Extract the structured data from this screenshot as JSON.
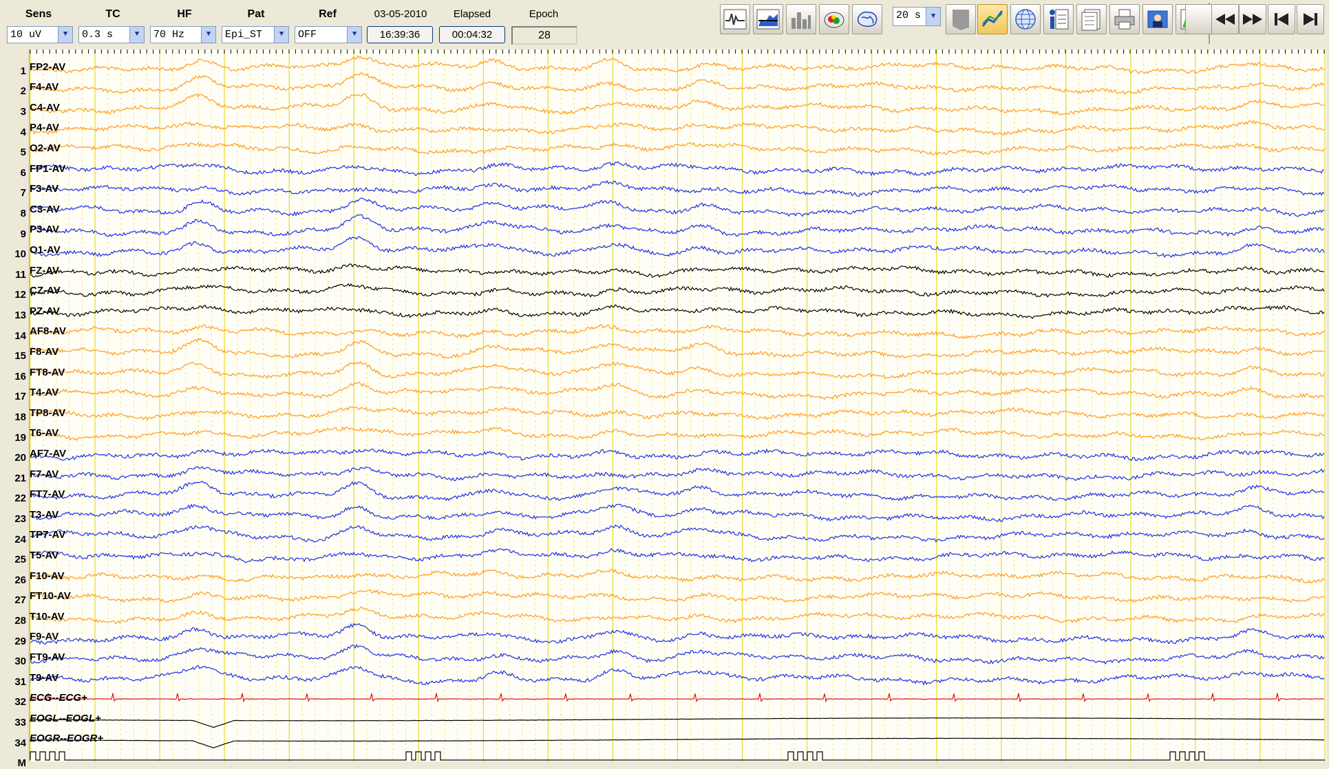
{
  "toolbar": {
    "sens": {
      "label": "Sens",
      "value": "10 uV"
    },
    "tc": {
      "label": "TC",
      "value": "0.3 s"
    },
    "hf": {
      "label": "HF",
      "value": "70 Hz"
    },
    "pat": {
      "label": "Pat",
      "value": "Epi_ST"
    },
    "ref": {
      "label": "Ref",
      "value": "OFF"
    },
    "date": {
      "label": "03-05-2010",
      "value": "16:39:36"
    },
    "elapsed": {
      "label": "Elapsed",
      "value": "00:04:32"
    },
    "epoch": {
      "label": "Epoch",
      "value": "28"
    },
    "page_duration": "20 s",
    "buttons": [
      {
        "name": "waveform-icon"
      },
      {
        "name": "spectrum-icon"
      },
      {
        "name": "histogram-icon"
      },
      {
        "name": "head-map-icon"
      },
      {
        "name": "brain-icon"
      },
      {
        "name": "marker-icon"
      },
      {
        "name": "trend-icon"
      },
      {
        "name": "grid-globe-icon"
      },
      {
        "name": "patient-info-icon"
      },
      {
        "name": "report-icon"
      },
      {
        "name": "print-icon"
      },
      {
        "name": "photo-icon"
      },
      {
        "name": "chart-icon"
      }
    ],
    "nav": [
      {
        "name": "rewind-icon"
      },
      {
        "name": "fast-forward-icon"
      },
      {
        "name": "skip-start-icon"
      },
      {
        "name": "skip-end-icon"
      }
    ]
  },
  "channels": [
    {
      "num": "1",
      "label": "FP2-AV",
      "color": "#ff9a1a"
    },
    {
      "num": "2",
      "label": "F4-AV",
      "color": "#ff9a1a"
    },
    {
      "num": "3",
      "label": "C4-AV",
      "color": "#ff9a1a"
    },
    {
      "num": "4",
      "label": "P4-AV",
      "color": "#ff9a1a"
    },
    {
      "num": "5",
      "label": "O2-AV",
      "color": "#ff9a1a"
    },
    {
      "num": "6",
      "label": "FP1-AV",
      "color": "#1a2ee6"
    },
    {
      "num": "7",
      "label": "F3-AV",
      "color": "#1a2ee6"
    },
    {
      "num": "8",
      "label": "C3-AV",
      "color": "#1a2ee6"
    },
    {
      "num": "9",
      "label": "P3-AV",
      "color": "#1a2ee6"
    },
    {
      "num": "10",
      "label": "O1-AV",
      "color": "#1a2ee6"
    },
    {
      "num": "11",
      "label": "FZ-AV",
      "color": "#000000"
    },
    {
      "num": "12",
      "label": "CZ-AV",
      "color": "#000000"
    },
    {
      "num": "13",
      "label": "PZ-AV",
      "color": "#000000"
    },
    {
      "num": "14",
      "label": "AF8-AV",
      "color": "#ff9a1a"
    },
    {
      "num": "15",
      "label": "F8-AV",
      "color": "#ff9a1a"
    },
    {
      "num": "16",
      "label": "FT8-AV",
      "color": "#ff9a1a"
    },
    {
      "num": "17",
      "label": "T4-AV",
      "color": "#ff9a1a"
    },
    {
      "num": "18",
      "label": "TP8-AV",
      "color": "#ff9a1a"
    },
    {
      "num": "19",
      "label": "T6-AV",
      "color": "#ff9a1a"
    },
    {
      "num": "20",
      "label": "AF7-AV",
      "color": "#1a2ee6"
    },
    {
      "num": "21",
      "label": "F7-AV",
      "color": "#1a2ee6"
    },
    {
      "num": "22",
      "label": "FT7-AV",
      "color": "#1a2ee6"
    },
    {
      "num": "23",
      "label": "T3-AV",
      "color": "#1a2ee6"
    },
    {
      "num": "24",
      "label": "TP7-AV",
      "color": "#1a2ee6"
    },
    {
      "num": "25",
      "label": "T5-AV",
      "color": "#1a2ee6"
    },
    {
      "num": "26",
      "label": "F10-AV",
      "color": "#ff9a1a"
    },
    {
      "num": "27",
      "label": "FT10-AV",
      "color": "#ff9a1a"
    },
    {
      "num": "28",
      "label": "T10-AV",
      "color": "#ff9a1a"
    },
    {
      "num": "29",
      "label": "F9-AV",
      "color": "#1a2ee6"
    },
    {
      "num": "30",
      "label": "FT9-AV",
      "color": "#1a2ee6"
    },
    {
      "num": "31",
      "label": "T9-AV",
      "color": "#1a2ee6"
    },
    {
      "num": "32",
      "label": "ECG--ECG+",
      "color": "#e01010",
      "italic": true
    },
    {
      "num": "33",
      "label": "EOGL--EOGL+",
      "color": "#000000",
      "italic": true
    },
    {
      "num": "34",
      "label": "EOGR--EOGR+",
      "color": "#000000",
      "italic": true
    },
    {
      "num": "M",
      "label": "",
      "color": "#000000"
    }
  ]
}
